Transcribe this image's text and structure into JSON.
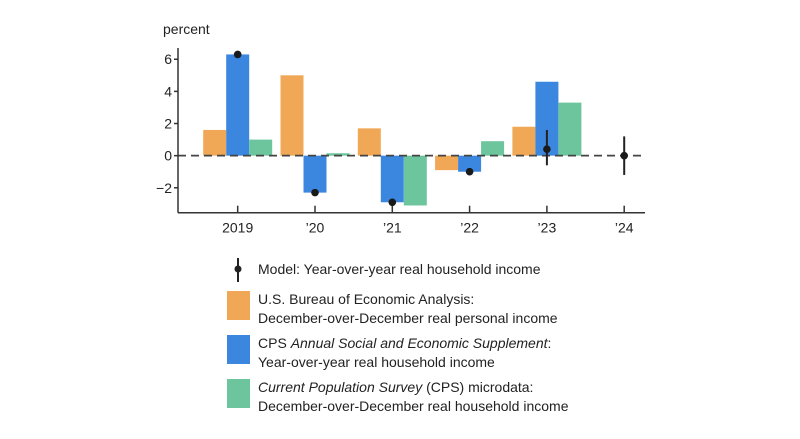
{
  "chart_data": {
    "type": "bar",
    "ylabel": "percent",
    "ylim": [
      -3.55,
      6.7
    ],
    "yticks": [
      -2,
      0,
      2,
      4,
      6
    ],
    "ytick_labels": [
      "−2",
      "0",
      "2",
      "4",
      "6"
    ],
    "categories": [
      "2019",
      "’20",
      "’21",
      "’22",
      "’23",
      "’24"
    ],
    "reference_line": 0,
    "series": [
      {
        "name": "U.S. Bureau of Economic Analysis: December-over-December real personal income",
        "color": "#f0a856",
        "values": [
          1.6,
          5.0,
          1.7,
          -0.9,
          1.8,
          null
        ]
      },
      {
        "name": "CPS Annual Social and Economic Supplement: Year-over-year real household income",
        "color": "#3b87e0",
        "values": [
          6.3,
          -2.3,
          -2.9,
          -1.0,
          4.6,
          null
        ]
      },
      {
        "name": "Current Population Survey (CPS) microdata: December-over-December real household income",
        "color": "#6cc59c",
        "values": [
          1.0,
          0.15,
          -3.1,
          0.9,
          3.3,
          null
        ]
      }
    ],
    "model": {
      "name": "Model: Year-over-year real household income",
      "values": [
        6.3,
        -2.3,
        -2.9,
        -1.0,
        0.4,
        0.0
      ],
      "error_low": [
        null,
        null,
        null,
        null,
        -0.6,
        -1.2
      ],
      "error_high": [
        null,
        null,
        null,
        null,
        1.6,
        1.2
      ]
    }
  },
  "legend": {
    "model": "Model: Year-over-year real household income",
    "bea_line1": "U.S. Bureau of Economic Analysis:",
    "bea_line2": "December-over-December real personal income",
    "asec_pre": "CPS ",
    "asec_italic": "Annual Social and Economic Supplement",
    "asec_post": ":",
    "asec_line2": "Year-over-year real household income",
    "cps_italic": "Current Population Survey",
    "cps_post": " (CPS) microdata:",
    "cps_line2": "December-over-December real household income"
  }
}
